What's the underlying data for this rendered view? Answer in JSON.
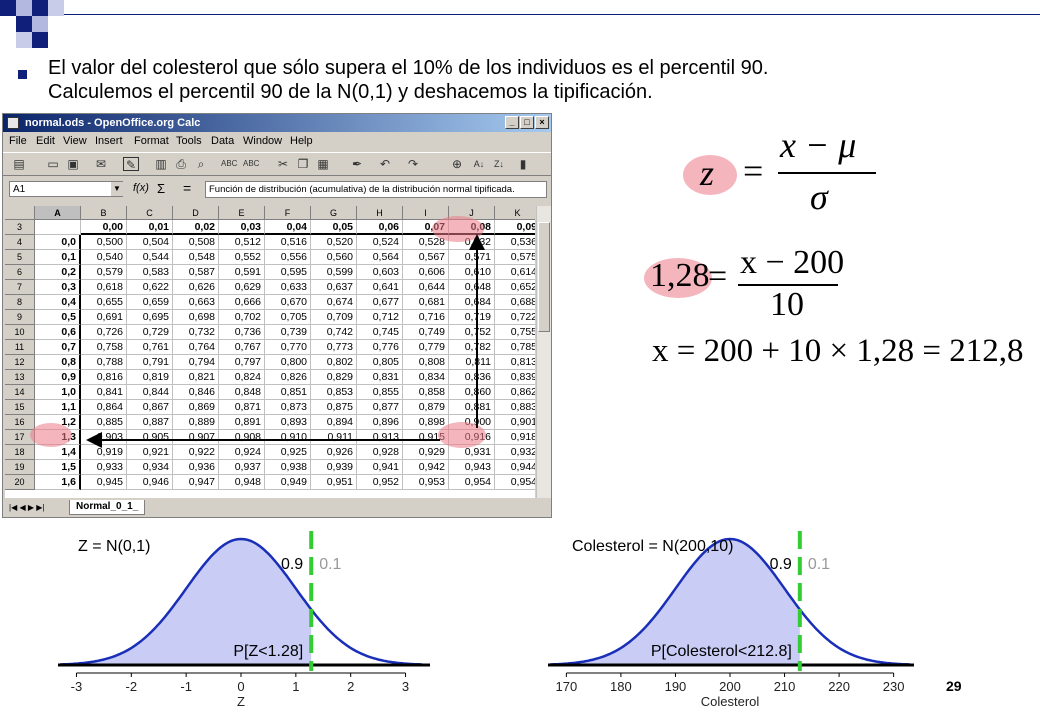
{
  "slide": {
    "heading_line1": "El valor del colesterol que sólo supera el 10% de los individuos es el percentil 90.",
    "heading_line2": "Calculemos el percentil 90 de la N(0,1) y deshacemos la tipificación.",
    "page_number": "29"
  },
  "calc": {
    "window_title": "normal.ods - OpenOffice.org Calc",
    "menu": [
      "File",
      "Edit",
      "View",
      "Insert",
      "Format",
      "Tools",
      "Data",
      "Window",
      "Help"
    ],
    "name_box": "A1",
    "formula_text": "Función de distribución (acumulativa) de la distribución normal tipificada.",
    "sheet_tab": "Normal_0_1_",
    "columns": [
      "A",
      "B",
      "C",
      "D",
      "E",
      "F",
      "G",
      "H",
      "I",
      "J",
      "K"
    ],
    "row_numbers": [
      "3",
      "4",
      "5",
      "6",
      "7",
      "8",
      "9",
      "10",
      "11",
      "12",
      "13",
      "14",
      "15",
      "16",
      "17",
      "18",
      "19",
      "20"
    ],
    "header_row": [
      "",
      "0,00",
      "0,01",
      "0,02",
      "0,03",
      "0,04",
      "0,05",
      "0,06",
      "0,07",
      "0,08",
      "0,09"
    ],
    "rows": [
      [
        "0,0",
        "0,500",
        "0,504",
        "0,508",
        "0,512",
        "0,516",
        "0,520",
        "0,524",
        "0,528",
        "0,532",
        "0,536"
      ],
      [
        "0,1",
        "0,540",
        "0,544",
        "0,548",
        "0,552",
        "0,556",
        "0,560",
        "0,564",
        "0,567",
        "0,571",
        "0,575"
      ],
      [
        "0,2",
        "0,579",
        "0,583",
        "0,587",
        "0,591",
        "0,595",
        "0,599",
        "0,603",
        "0,606",
        "0,610",
        "0,614"
      ],
      [
        "0,3",
        "0,618",
        "0,622",
        "0,626",
        "0,629",
        "0,633",
        "0,637",
        "0,641",
        "0,644",
        "0,648",
        "0,652"
      ],
      [
        "0,4",
        "0,655",
        "0,659",
        "0,663",
        "0,666",
        "0,670",
        "0,674",
        "0,677",
        "0,681",
        "0,684",
        "0,688"
      ],
      [
        "0,5",
        "0,691",
        "0,695",
        "0,698",
        "0,702",
        "0,705",
        "0,709",
        "0,712",
        "0,716",
        "0,719",
        "0,722"
      ],
      [
        "0,6",
        "0,726",
        "0,729",
        "0,732",
        "0,736",
        "0,739",
        "0,742",
        "0,745",
        "0,749",
        "0,752",
        "0,755"
      ],
      [
        "0,7",
        "0,758",
        "0,761",
        "0,764",
        "0,767",
        "0,770",
        "0,773",
        "0,776",
        "0,779",
        "0,782",
        "0,785"
      ],
      [
        "0,8",
        "0,788",
        "0,791",
        "0,794",
        "0,797",
        "0,800",
        "0,802",
        "0,805",
        "0,808",
        "0,811",
        "0,813"
      ],
      [
        "0,9",
        "0,816",
        "0,819",
        "0,821",
        "0,824",
        "0,826",
        "0,829",
        "0,831",
        "0,834",
        "0,836",
        "0,839"
      ],
      [
        "1,0",
        "0,841",
        "0,844",
        "0,846",
        "0,848",
        "0,851",
        "0,853",
        "0,855",
        "0,858",
        "0,860",
        "0,862"
      ],
      [
        "1,1",
        "0,864",
        "0,867",
        "0,869",
        "0,871",
        "0,873",
        "0,875",
        "0,877",
        "0,879",
        "0,881",
        "0,883"
      ],
      [
        "1,2",
        "0,885",
        "0,887",
        "0,889",
        "0,891",
        "0,893",
        "0,894",
        "0,896",
        "0,898",
        "0,900",
        "0,901"
      ],
      [
        "1,3",
        "0,903",
        "0,905",
        "0,907",
        "0,908",
        "0,910",
        "0,911",
        "0,913",
        "0,915",
        "0,916",
        "0,918"
      ],
      [
        "1,4",
        "0,919",
        "0,921",
        "0,922",
        "0,924",
        "0,925",
        "0,926",
        "0,928",
        "0,929",
        "0,931",
        "0,932"
      ],
      [
        "1,5",
        "0,933",
        "0,934",
        "0,936",
        "0,937",
        "0,938",
        "0,939",
        "0,941",
        "0,942",
        "0,943",
        "0,944"
      ],
      [
        "1,6",
        "0,945",
        "0,946",
        "0,947",
        "0,948",
        "0,949",
        "0,951",
        "0,952",
        "0,953",
        "0,954",
        "0,954"
      ]
    ]
  },
  "formulas": {
    "f1_lhs": "z",
    "f1_eq": "=",
    "f1_num": "x − μ",
    "f1_den": "σ",
    "f2_lhs": "1,28",
    "f2_eq": "=",
    "f2_num": "x − 200",
    "f2_den": "10",
    "f3": "x = 200 + 10 × 1,28 = 212,8"
  },
  "chart_data": [
    {
      "type": "area",
      "title": "Z = N(0,1)",
      "mean": 0,
      "sd": 1,
      "x_ticks": [
        "-3",
        "-2",
        "-1",
        "0",
        "1",
        "2",
        "3"
      ],
      "x_tick_values": [
        -3,
        -2,
        -1,
        0,
        1,
        2,
        3
      ],
      "xlim": [
        -3.3,
        3.3
      ],
      "xlabel": "Z",
      "cutoff": 1.28,
      "left_label": "0.9",
      "right_label": "0.1",
      "area_label": "P[Z<1.28]",
      "colors": {
        "curve": "#1a2fb8",
        "fill": "#c9ccf5",
        "cutoff": "#33cc33"
      }
    },
    {
      "type": "area",
      "title": "Colesterol = N(200,10)",
      "mean": 200,
      "sd": 10,
      "x_ticks": [
        "170",
        "180",
        "190",
        "200",
        "210",
        "220",
        "230"
      ],
      "x_tick_values": [
        170,
        180,
        190,
        200,
        210,
        220,
        230
      ],
      "xlim": [
        167,
        233
      ],
      "xlabel": "Colesterol",
      "cutoff": 212.8,
      "left_label": "0.9",
      "right_label": "0.1",
      "area_label": "P[Colesterol<212.8]",
      "colors": {
        "curve": "#1a2fb8",
        "fill": "#c9ccf5",
        "cutoff": "#33cc33"
      }
    }
  ]
}
